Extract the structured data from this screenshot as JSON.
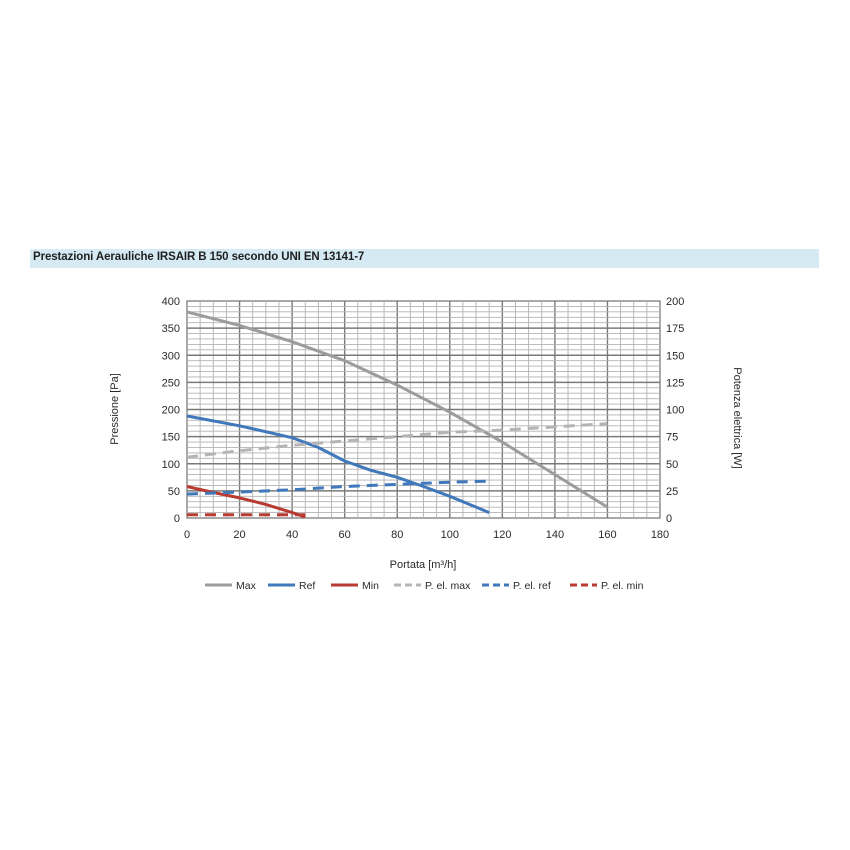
{
  "title": "Prestazioni Aerauliche IRSAIR B 150 secondo UNI EN 13141-7",
  "chart_data": {
    "type": "line",
    "xlabel": "Portata [m³/h]",
    "ylabel": "Pressione [Pa]",
    "y2label": "Potenza elettrica [W]",
    "xlim": [
      0,
      180
    ],
    "ylim": [
      0,
      400
    ],
    "y2lim": [
      0,
      200
    ],
    "x_ticks": [
      "0",
      "20",
      "40",
      "60",
      "80",
      "100",
      "120",
      "140",
      "160",
      "180"
    ],
    "y_ticks": [
      "0",
      "50",
      "100",
      "150",
      "200",
      "250",
      "300",
      "350",
      "400"
    ],
    "y2_ticks": [
      "0",
      "25",
      "50",
      "75",
      "100",
      "125",
      "150",
      "175",
      "200"
    ],
    "grid": true,
    "legend_position": "bottom",
    "series": [
      {
        "name": "Max",
        "axis": "left",
        "style": "solid",
        "color": "#9c9c9c",
        "x": [
          0,
          20,
          40,
          60,
          80,
          100,
          120,
          140,
          160
        ],
        "y": [
          380,
          355,
          325,
          290,
          245,
          195,
          140,
          80,
          20
        ]
      },
      {
        "name": "Ref",
        "axis": "left",
        "style": "solid",
        "color": "#3f78bb",
        "x": [
          0,
          20,
          40,
          50,
          60,
          70,
          80,
          90,
          100,
          110,
          115
        ],
        "y": [
          188,
          170,
          148,
          130,
          105,
          88,
          75,
          58,
          40,
          20,
          10
        ]
      },
      {
        "name": "Min",
        "axis": "left",
        "style": "solid",
        "color": "#b83a30",
        "x": [
          0,
          10,
          20,
          30,
          40,
          45
        ],
        "y": [
          58,
          47,
          37,
          25,
          10,
          2
        ]
      },
      {
        "name": "P. el. max",
        "axis": "right",
        "style": "dashed",
        "color": "#b4b4b4",
        "x": [
          0,
          20,
          40,
          60,
          80,
          100,
          120,
          140,
          160
        ],
        "y": [
          56,
          62,
          67,
          71,
          75,
          79,
          81,
          84,
          87
        ]
      },
      {
        "name": "P. el. ref",
        "axis": "right",
        "style": "dashed",
        "color": "#3f78bb",
        "x": [
          0,
          20,
          40,
          60,
          80,
          100,
          115
        ],
        "y": [
          22,
          24,
          26,
          29,
          31,
          33,
          34
        ]
      },
      {
        "name": "P. el. min",
        "axis": "right",
        "style": "dashed",
        "color": "#b83a30",
        "x": [
          0,
          10,
          20,
          30,
          40,
          45
        ],
        "y": [
          3,
          3,
          3,
          3,
          3,
          3
        ]
      }
    ]
  }
}
